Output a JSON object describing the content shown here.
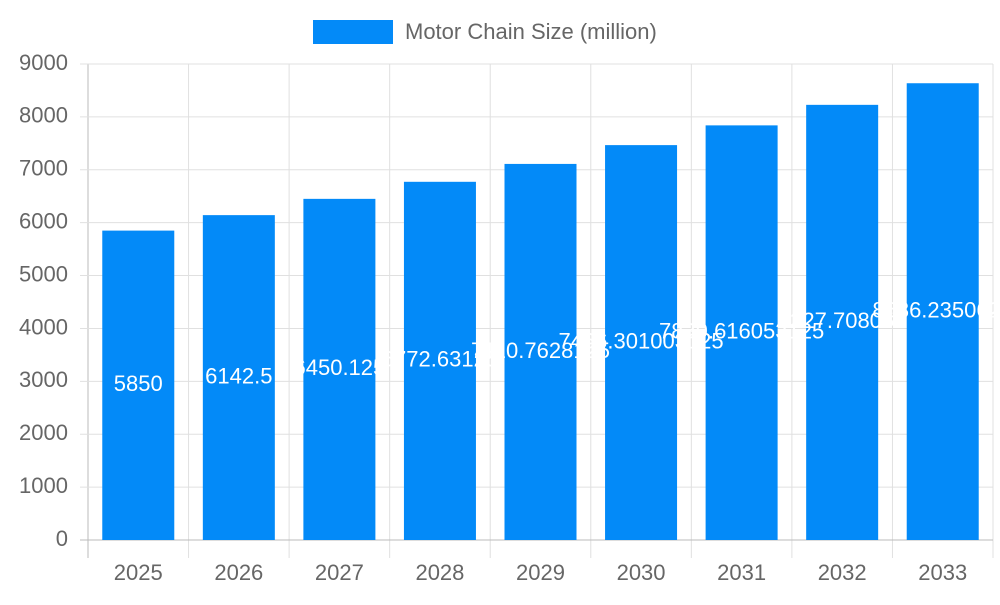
{
  "chart_data": {
    "type": "bar",
    "categories": [
      "2025",
      "2026",
      "2027",
      "2028",
      "2029",
      "2030",
      "2031",
      "2032",
      "2033"
    ],
    "series": [
      {
        "name": "Motor Chain Size (million)",
        "color": "#038af8",
        "values": [
          5850,
          6142.5,
          6450.125,
          6772.63125,
          7110.7628125,
          7466.301003125,
          7839.616053125,
          8227.708055,
          8636.2350625
        ]
      }
    ],
    "ylim": [
      0,
      9000
    ],
    "yticks": [
      0,
      1000,
      2000,
      3000,
      4000,
      5000,
      6000,
      7000,
      8000,
      9000
    ],
    "grid": true,
    "legend": "top"
  }
}
